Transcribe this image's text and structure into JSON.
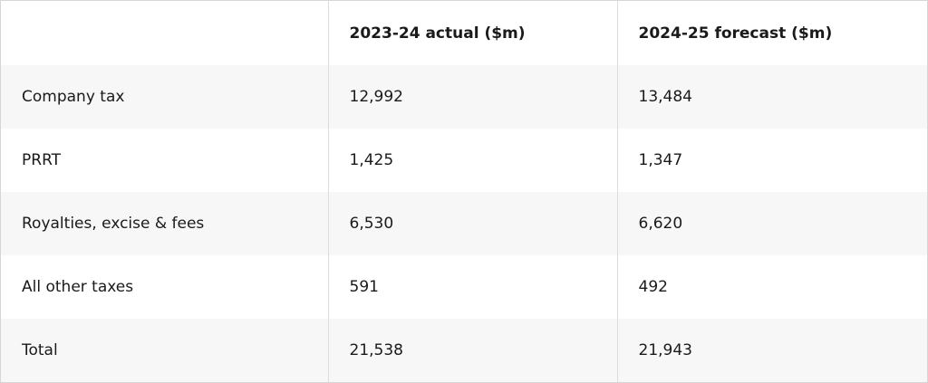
{
  "table": {
    "columns": [
      "2023-24 actual ($m)",
      "2024-25 forecast ($m)"
    ],
    "rows": [
      [
        "Company tax",
        "12,992",
        "13,484"
      ],
      [
        "PRRT",
        "1,425",
        "1,347"
      ],
      [
        "Royalties, excise & fees",
        "6,530",
        "6,620"
      ],
      [
        "All other taxes",
        "591",
        "492"
      ],
      [
        "Total",
        "21,538",
        "21,943"
      ]
    ]
  }
}
